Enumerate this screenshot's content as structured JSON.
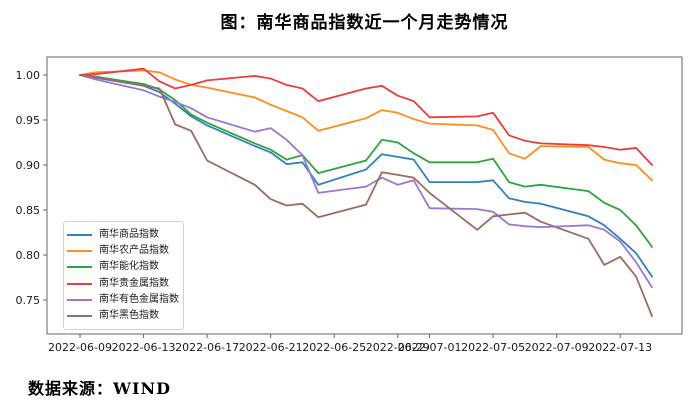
{
  "title": "图：南华商品指数近一个月走势情况",
  "source_note": "数据来源：WIND",
  "chart_data": {
    "type": "line",
    "title": "图：南华商品指数近一个月走势情况",
    "xlabel": "",
    "ylabel": "",
    "grid": false,
    "legend_position": "lower left",
    "ylim": [
      0.72,
      1.02
    ],
    "y_ticks": [
      "1.00",
      "0.95",
      "0.90",
      "0.85",
      "0.80",
      "0.75"
    ],
    "y_tick_values": [
      1.0,
      0.95,
      0.9,
      0.85,
      0.8,
      0.75
    ],
    "x_ticks": [
      "2022-06-09",
      "2022-06-13",
      "2022-06-17",
      "2022-06-21",
      "2022-06-25",
      "2022-06-29",
      "2022-07-01",
      "2022-07-05",
      "2022-07-09",
      "2022-07-13"
    ],
    "x": [
      "2022-06-09",
      "2022-06-10",
      "2022-06-13",
      "2022-06-14",
      "2022-06-15",
      "2022-06-16",
      "2022-06-17",
      "2022-06-20",
      "2022-06-21",
      "2022-06-22",
      "2022-06-23",
      "2022-06-24",
      "2022-06-27",
      "2022-06-28",
      "2022-06-29",
      "2022-06-30",
      "2022-07-01",
      "2022-07-04",
      "2022-07-05",
      "2022-07-06",
      "2022-07-07",
      "2022-07-08",
      "2022-07-11",
      "2022-07-12",
      "2022-07-13",
      "2022-07-14",
      "2022-07-15"
    ],
    "series": [
      {
        "name": "南华商品指数",
        "color": "#2f81c2",
        "values": [
          1.0,
          0.997,
          0.988,
          0.981,
          0.968,
          0.954,
          0.944,
          0.921,
          0.914,
          0.901,
          0.903,
          0.878,
          0.895,
          0.912,
          0.909,
          0.906,
          0.881,
          0.881,
          0.883,
          0.863,
          0.859,
          0.857,
          0.843,
          0.833,
          0.818,
          0.802,
          0.776
        ]
      },
      {
        "name": "南华农产品指数",
        "color": "#ff8d1e",
        "values": [
          1.0,
          1.003,
          1.005,
          1.003,
          0.995,
          0.989,
          0.986,
          0.975,
          0.967,
          0.96,
          0.953,
          0.938,
          0.952,
          0.961,
          0.958,
          0.951,
          0.946,
          0.944,
          0.939,
          0.913,
          0.907,
          0.921,
          0.92,
          0.906,
          0.902,
          0.9,
          0.883
        ]
      },
      {
        "name": "南华能化指数",
        "color": "#2fa43c",
        "values": [
          1.0,
          0.998,
          0.99,
          0.984,
          0.972,
          0.956,
          0.947,
          0.924,
          0.917,
          0.906,
          0.911,
          0.891,
          0.905,
          0.928,
          0.925,
          0.913,
          0.903,
          0.903,
          0.907,
          0.881,
          0.876,
          0.878,
          0.871,
          0.858,
          0.85,
          0.833,
          0.809
        ]
      },
      {
        "name": "南华贵金属指数",
        "color": "#e93e3c",
        "values": [
          1.0,
          1.001,
          1.007,
          0.993,
          0.985,
          0.989,
          0.994,
          0.999,
          0.996,
          0.989,
          0.985,
          0.971,
          0.985,
          0.988,
          0.977,
          0.971,
          0.953,
          0.954,
          0.958,
          0.933,
          0.927,
          0.924,
          0.922,
          0.92,
          0.917,
          0.919,
          0.9
        ]
      },
      {
        "name": "南华有色金属指数",
        "color": "#9a77d1",
        "values": [
          1.0,
          0.995,
          0.983,
          0.976,
          0.97,
          0.963,
          0.953,
          0.937,
          0.941,
          0.928,
          0.911,
          0.869,
          0.876,
          0.886,
          0.878,
          0.883,
          0.852,
          0.851,
          0.848,
          0.834,
          0.832,
          0.831,
          0.833,
          0.828,
          0.815,
          0.792,
          0.764
        ]
      },
      {
        "name": "南华黑色指数",
        "color": "#9b6b5f",
        "values": [
          1.0,
          0.998,
          0.988,
          0.985,
          0.945,
          0.938,
          0.905,
          0.878,
          0.862,
          0.855,
          0.857,
          0.842,
          0.856,
          0.892,
          0.889,
          0.886,
          0.869,
          0.828,
          0.843,
          0.845,
          0.847,
          0.837,
          0.818,
          0.789,
          0.798,
          0.776,
          0.732
        ]
      }
    ]
  }
}
